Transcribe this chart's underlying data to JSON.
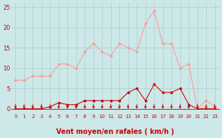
{
  "x": [
    0,
    1,
    2,
    3,
    4,
    5,
    6,
    7,
    8,
    9,
    10,
    11,
    12,
    13,
    14,
    15,
    16,
    17,
    18,
    19,
    20,
    21,
    22,
    23
  ],
  "rafales": [
    7,
    7,
    8,
    8,
    8,
    11,
    11,
    10,
    14,
    16,
    14,
    13,
    16,
    15,
    14,
    21,
    24,
    16,
    16,
    10,
    11,
    0,
    2,
    0.5
  ],
  "moyen": [
    0,
    0,
    0,
    0,
    0.5,
    1.5,
    1,
    1,
    2,
    2,
    2,
    2,
    2,
    4,
    5,
    2,
    6,
    4,
    4,
    5,
    1,
    0,
    0,
    0
  ],
  "bg_color": "#cce8e8",
  "grid_color": "#aacccc",
  "line_rafales_color": "#ff9999",
  "line_moyen_color": "#cc0000",
  "marker_color": "#cc0000",
  "marker_rafales_color": "#ff9999",
  "xlabel": "Vent moyen/en rafales ( km/h )",
  "xlabel_color": "#cc0000",
  "xlabel_fontsize": 7,
  "tick_color": "#cc0000",
  "ylim": [
    0,
    26
  ],
  "yticks": [
    0,
    5,
    10,
    15,
    20,
    25
  ],
  "arrow_color": "#cc0000",
  "figsize": [
    3.2,
    2.0
  ],
  "dpi": 100
}
